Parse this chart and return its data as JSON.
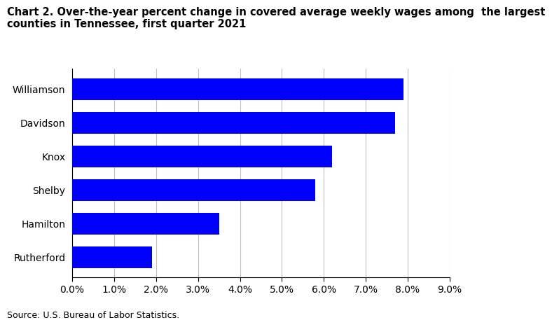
{
  "title_line1": "Chart 2. Over-the-year percent change in covered average weekly wages among  the largest",
  "title_line2": "counties in Tennessee, first quarter 2021",
  "categories": [
    "Rutherford",
    "Hamilton",
    "Shelby",
    "Knox",
    "Davidson",
    "Williamson"
  ],
  "values": [
    0.019,
    0.035,
    0.058,
    0.062,
    0.077,
    0.079
  ],
  "bar_color": "#0000ff",
  "xlim": [
    0,
    0.09
  ],
  "xticks": [
    0.0,
    0.01,
    0.02,
    0.03,
    0.04,
    0.05,
    0.06,
    0.07,
    0.08,
    0.09
  ],
  "source": "Source: U.S. Bureau of Labor Statistics.",
  "background_color": "#ffffff",
  "grid_color": "#c0c0c0",
  "title_fontsize": 10.5,
  "tick_fontsize": 10,
  "source_fontsize": 9,
  "bar_height": 0.65
}
